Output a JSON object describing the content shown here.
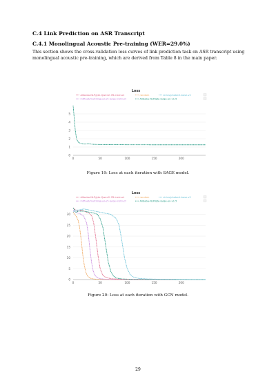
{
  "section_heading": "C.4   Link Prediction on ASR Transcript",
  "subsection_heading": "C.4.1   Monolingual Acoustic Pre-training (WER=29.0%)",
  "paragraph": "This section shows the cross-validation loss curves of link prediction task on ASR transcript using monolingual acoustic pre-training, which are derived from Table 8 in the main paper.",
  "figure19_caption": "Figure 19: Loss at each iteration with SAGE model.",
  "figure20_caption": "Figure 20: Loss at each iteration with GCN model.",
  "page_number": "29",
  "colors": {
    "alibaba_qwen": "#e06a8a",
    "random": "#f0a860",
    "sirius_phobert": "#6ec3d8",
    "intfloat_e5": "#c98be0",
    "alibaba_gte": "#2e9e8a"
  },
  "chart_data": [
    {
      "type": "line",
      "title": "Loss",
      "legend_position": "top",
      "legend": [
        {
          "name": "Alibaba-NLP/gte-Qwen2-7B-instruct",
          "color": "#e06a8a"
        },
        {
          "name": "random",
          "color": "#f0a860"
        },
        {
          "name": "sirius/phobert-base-v2",
          "color": "#6ec3d8"
        },
        {
          "name": "intfloat/multilingual-e5-large-instruct",
          "color": "#c98be0"
        },
        {
          "name": "Alibaba-NLP/gte-large-en-v1.5",
          "color": "#2e9e8a"
        }
      ],
      "xlim": [
        0,
        245
      ],
      "ylim": [
        0,
        6
      ],
      "xticks": [
        0,
        50,
        100,
        150,
        200
      ],
      "yticks": [
        0,
        1,
        2,
        3,
        4,
        5
      ],
      "grid": true,
      "series": [
        {
          "name": "Alibaba-NLP/gte-large-en-v1.5",
          "color": "#2e9e8a",
          "x": [
            0,
            2,
            4,
            6,
            8,
            10,
            14,
            18,
            22,
            28,
            36,
            50,
            70,
            100,
            150,
            200,
            245
          ],
          "y": [
            6.0,
            4.5,
            3.0,
            2.1,
            1.75,
            1.55,
            1.45,
            1.38,
            1.36,
            1.4,
            1.33,
            1.3,
            1.29,
            1.28,
            1.27,
            1.27,
            1.27
          ]
        }
      ]
    },
    {
      "type": "line",
      "title": "Loss",
      "legend_position": "top",
      "legend": [
        {
          "name": "Alibaba-NLP/gte-Qwen2-7B-instruct",
          "color": "#e06a8a"
        },
        {
          "name": "random",
          "color": "#f0a860"
        },
        {
          "name": "sirius/phobert-base-v2",
          "color": "#6ec3d8"
        },
        {
          "name": "intfloat/multilingual-e5-large-instruct",
          "color": "#c98be0"
        },
        {
          "name": "Alibaba-NLP/gte-large-en-v1.5",
          "color": "#2e9e8a"
        }
      ],
      "xlim": [
        0,
        245
      ],
      "ylim": [
        0,
        34
      ],
      "xticks": [
        0,
        50,
        100,
        150,
        200
      ],
      "yticks": [
        0,
        5,
        10,
        15,
        20,
        25,
        30
      ],
      "grid": true,
      "series": [
        {
          "name": "random",
          "color": "#f0a860",
          "x": [
            0,
            3,
            6,
            9,
            12,
            15,
            18,
            21,
            24,
            27,
            30,
            35,
            40,
            50,
            60,
            80,
            245
          ],
          "y": [
            31,
            30,
            29,
            27.5,
            24,
            18,
            11,
            6,
            3,
            1.5,
            0.8,
            0.4,
            0.2,
            0.1,
            0.05,
            0,
            0
          ]
        },
        {
          "name": "intfloat/multilingual-e5-large-instruct",
          "color": "#c98be0",
          "x": [
            0,
            5,
            10,
            15,
            20,
            25,
            28,
            31,
            34,
            37,
            40,
            45,
            50,
            60,
            80,
            245
          ],
          "y": [
            32,
            31,
            30.5,
            30,
            29,
            26,
            21,
            14,
            8,
            4,
            2,
            0.8,
            0.4,
            0.15,
            0.05,
            0
          ]
        },
        {
          "name": "Alibaba-NLP/gte-Qwen2-7B-instruct",
          "color": "#e06a8a",
          "x": [
            0,
            5,
            10,
            15,
            20,
            25,
            30,
            35,
            38,
            42,
            46,
            50,
            55,
            60,
            70,
            90,
            245
          ],
          "y": [
            33,
            32,
            31.5,
            32,
            31.5,
            31,
            30.5,
            29,
            26,
            19,
            11,
            5,
            2,
            1,
            0.4,
            0.1,
            0
          ]
        },
        {
          "name": "Alibaba-NLP/gte-large-en-v1.5",
          "color": "#2e9e8a",
          "x": [
            0,
            5,
            10,
            20,
            30,
            40,
            45,
            50,
            55,
            60,
            65,
            70,
            75,
            80,
            90,
            110,
            245
          ],
          "y": [
            33,
            31,
            31.5,
            31.5,
            31,
            30.5,
            30,
            28,
            24,
            16,
            8,
            3.5,
            1.5,
            0.7,
            0.3,
            0.1,
            0
          ]
        },
        {
          "name": "sirius/phobert-base-v2",
          "color": "#6ec3d8",
          "x": [
            0,
            5,
            10,
            20,
            30,
            40,
            50,
            60,
            70,
            80,
            85,
            90,
            95,
            100,
            105,
            110,
            120,
            135,
            160,
            200,
            245
          ],
          "y": [
            31,
            32,
            32,
            32.5,
            32,
            31.5,
            31,
            30.5,
            30,
            28,
            25,
            18,
            10,
            5,
            2.5,
            1.3,
            0.6,
            0.3,
            0.15,
            0.05,
            0
          ]
        }
      ]
    }
  ]
}
